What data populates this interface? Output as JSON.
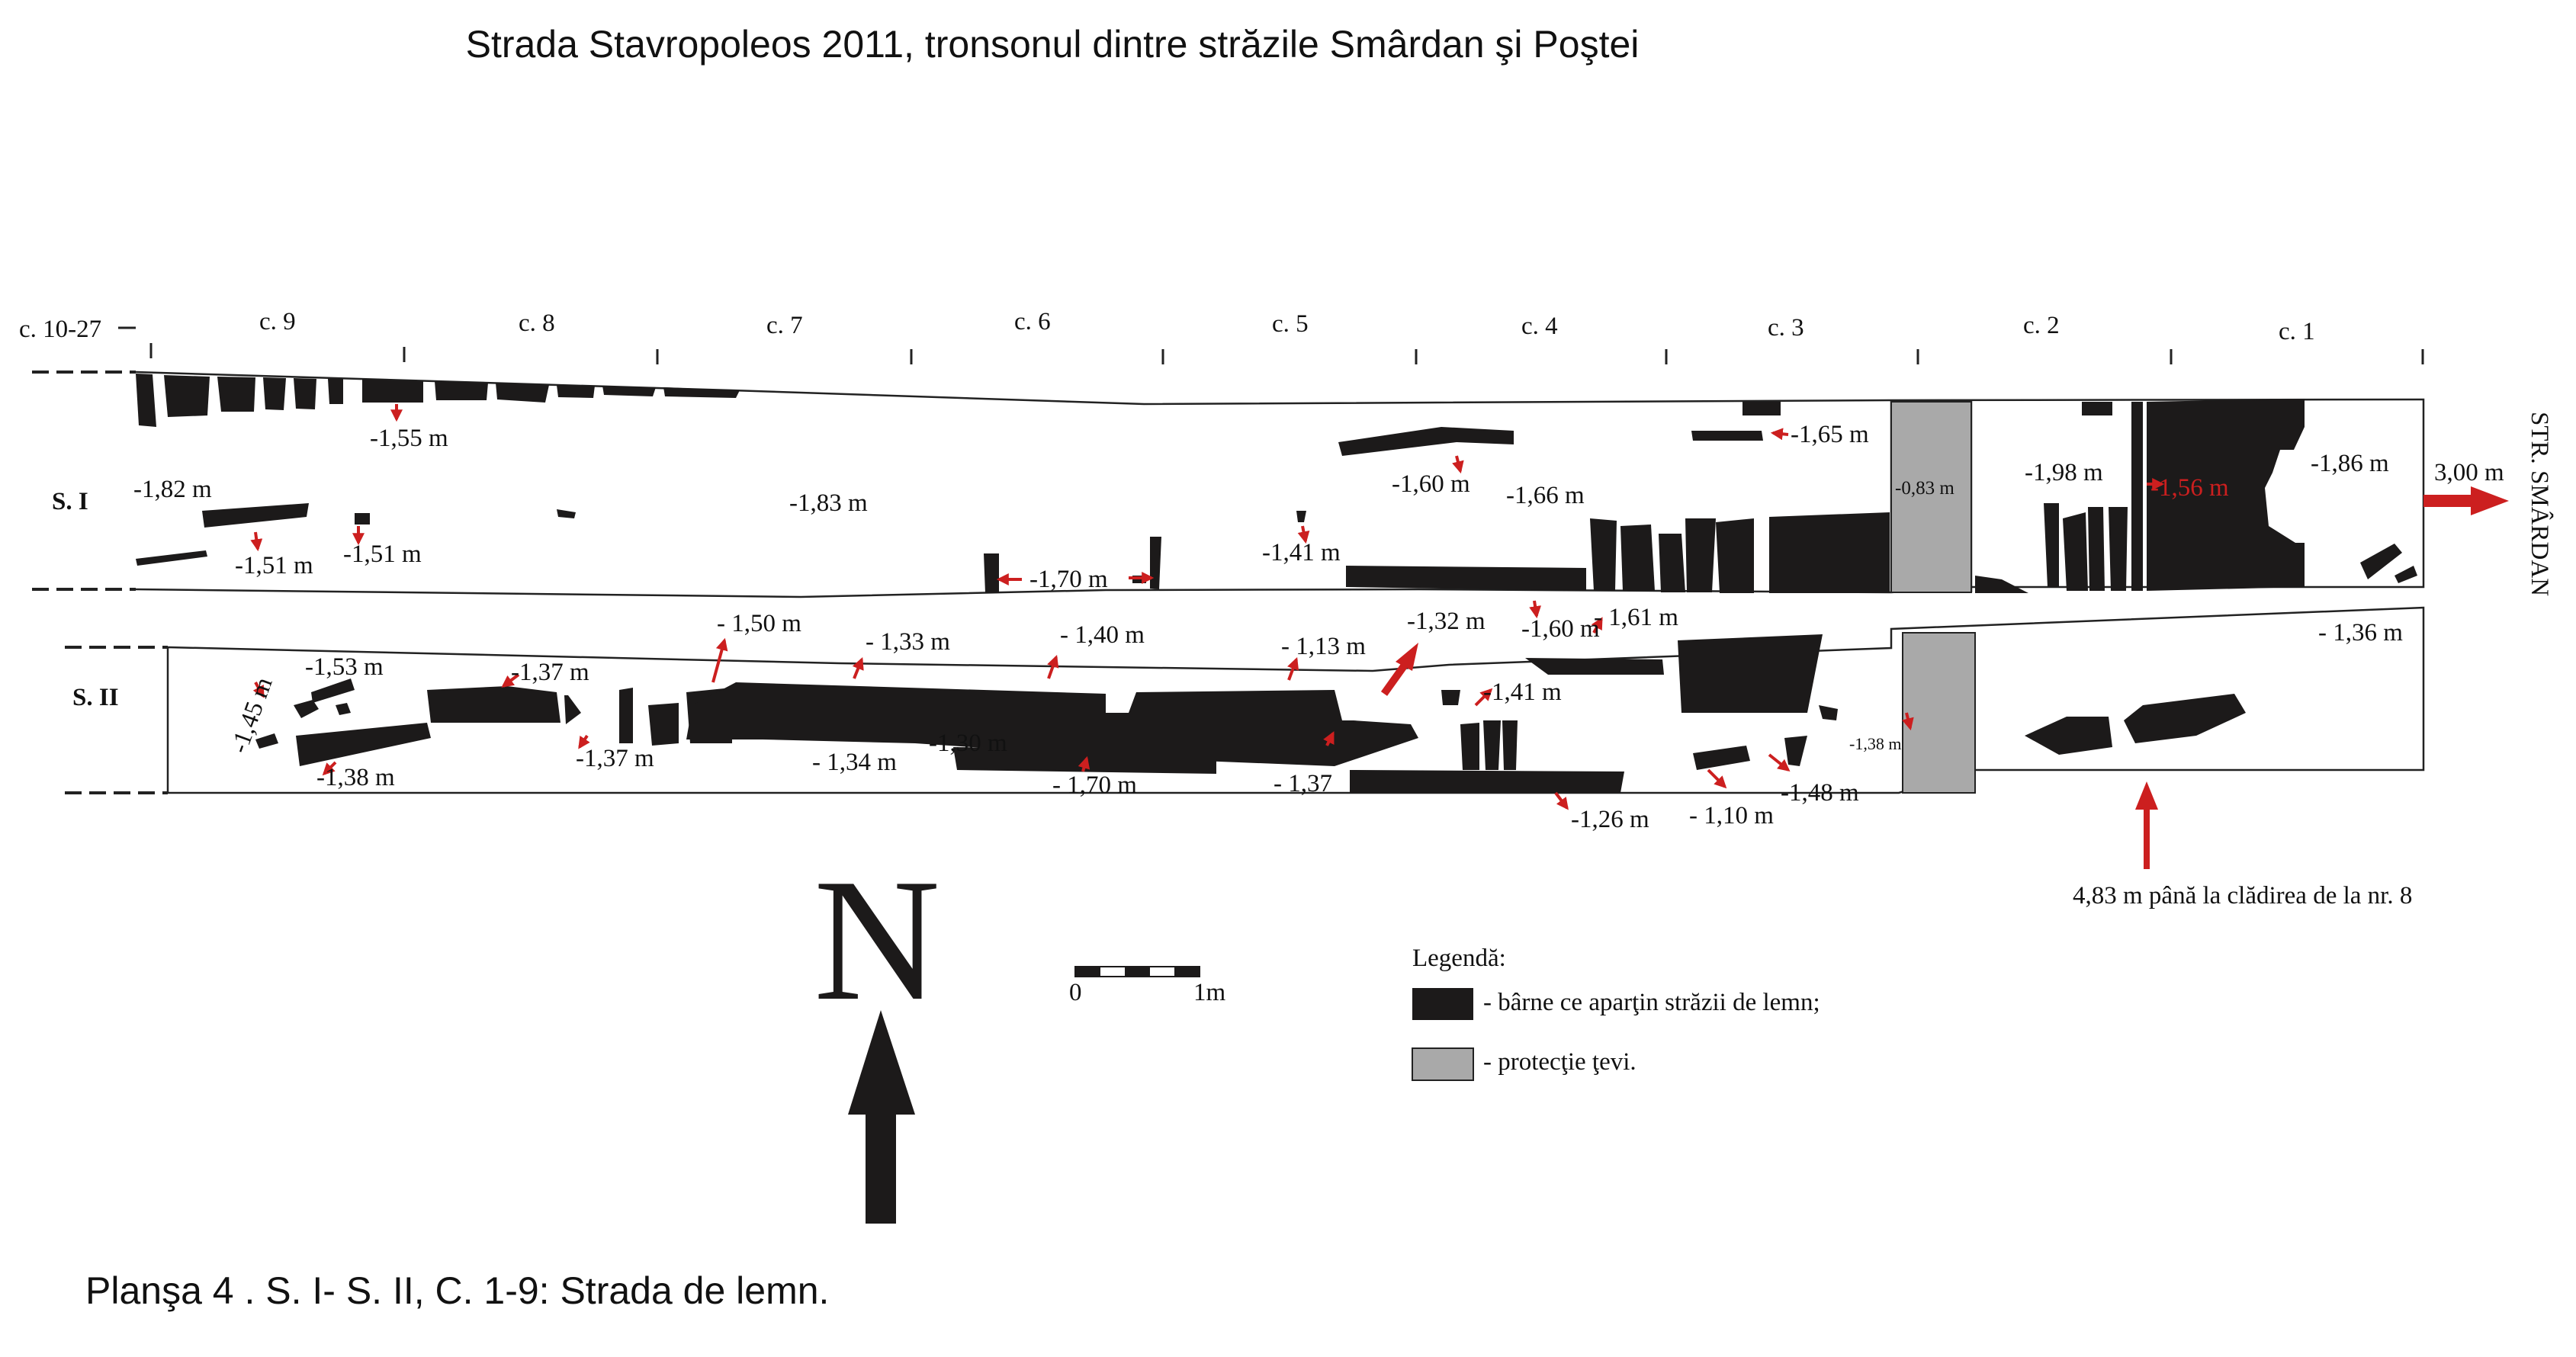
{
  "title": "Strada Stavropoleos 2011, tronsonul dintre străzile Smârdan şi Poştei",
  "caption": "Planşa 4 . S. I- S. II, C. 1-9: Strada de lemn.",
  "colors": {
    "timber": "#1c1a1a",
    "pipe": "#a9a9a9",
    "arrow": "#cc1f1f",
    "line": "#222222"
  },
  "sectors": [
    "c. 10-27",
    "c. 9",
    "c. 8",
    "c. 7",
    "c. 6",
    "c. 5",
    "c. 4",
    "c. 3",
    "c. 2",
    "c. 1"
  ],
  "sections": {
    "s1": "S. I",
    "s2": "S. II"
  },
  "street": "STR. SMÂRDAN",
  "distance_right": "3,00 m",
  "building_note": "4,83 m până la clădirea de la nr. 8",
  "north": "N",
  "scale": {
    "zero": "0",
    "one": "1m"
  },
  "legend": {
    "title": "Legendă:",
    "timber": "- bârne ce aparţin străzii de lemn;",
    "pipe": "- protecţie ţevi."
  },
  "levels": {
    "s1": [
      "-1,55 m",
      "-1,82 m",
      "-1,51 m",
      "-1,51 m",
      "-1,83 m",
      "-1,70 m",
      "-1,60 m",
      "-1,41 m",
      "-1,66 m",
      "-1,65 m",
      "-0,83 m",
      "-1,98 m",
      "-1,56 m",
      "-1,86 m"
    ],
    "s2": [
      "-1,45 m",
      "-1,53 m",
      "-1,37 m",
      "-1,38 m",
      "-1,37 m",
      "- 1,50 m",
      "- 1,33 m",
      "- 1,40 m",
      "- 1,34 m",
      "-1,30 m",
      "- 1,70 m",
      "- 1,13 m",
      "-1,32 m",
      "- 1,37",
      "-1,60 m",
      "- 1,61 m",
      "-1,41 m",
      "-1,26 m",
      "- 1,10 m",
      "-1,48 m",
      "-1,38 m",
      "- 1,36 m"
    ]
  }
}
